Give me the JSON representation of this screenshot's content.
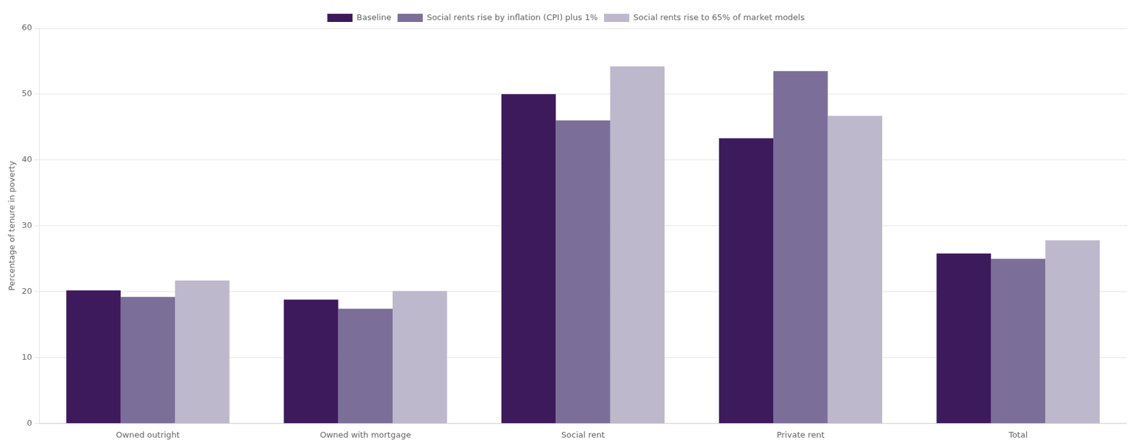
{
  "chart_data": {
    "type": "bar",
    "categories": [
      "Owned outright",
      "Owned with mortgage",
      "Social rent",
      "Private rent",
      "Total"
    ],
    "series": [
      {
        "name": "Baseline",
        "color": "#3d1a5c",
        "values": [
          20.2,
          18.8,
          50.0,
          43.3,
          25.8
        ]
      },
      {
        "name": "Social rents rise by inflation (CPI) plus 1%",
        "color": "#7b6f99",
        "values": [
          19.2,
          17.4,
          46.0,
          53.5,
          25.0
        ]
      },
      {
        "name": "Social rents rise to 65% of market models",
        "color": "#bdb8cc",
        "values": [
          21.7,
          20.1,
          54.2,
          46.7,
          27.8
        ]
      }
    ],
    "ylabel": "Percentage of tenure in poverty",
    "ylim": [
      0,
      60
    ],
    "yticks": [
      0,
      10,
      20,
      30,
      40,
      50,
      60
    ],
    "grid": true,
    "legend": "top"
  }
}
